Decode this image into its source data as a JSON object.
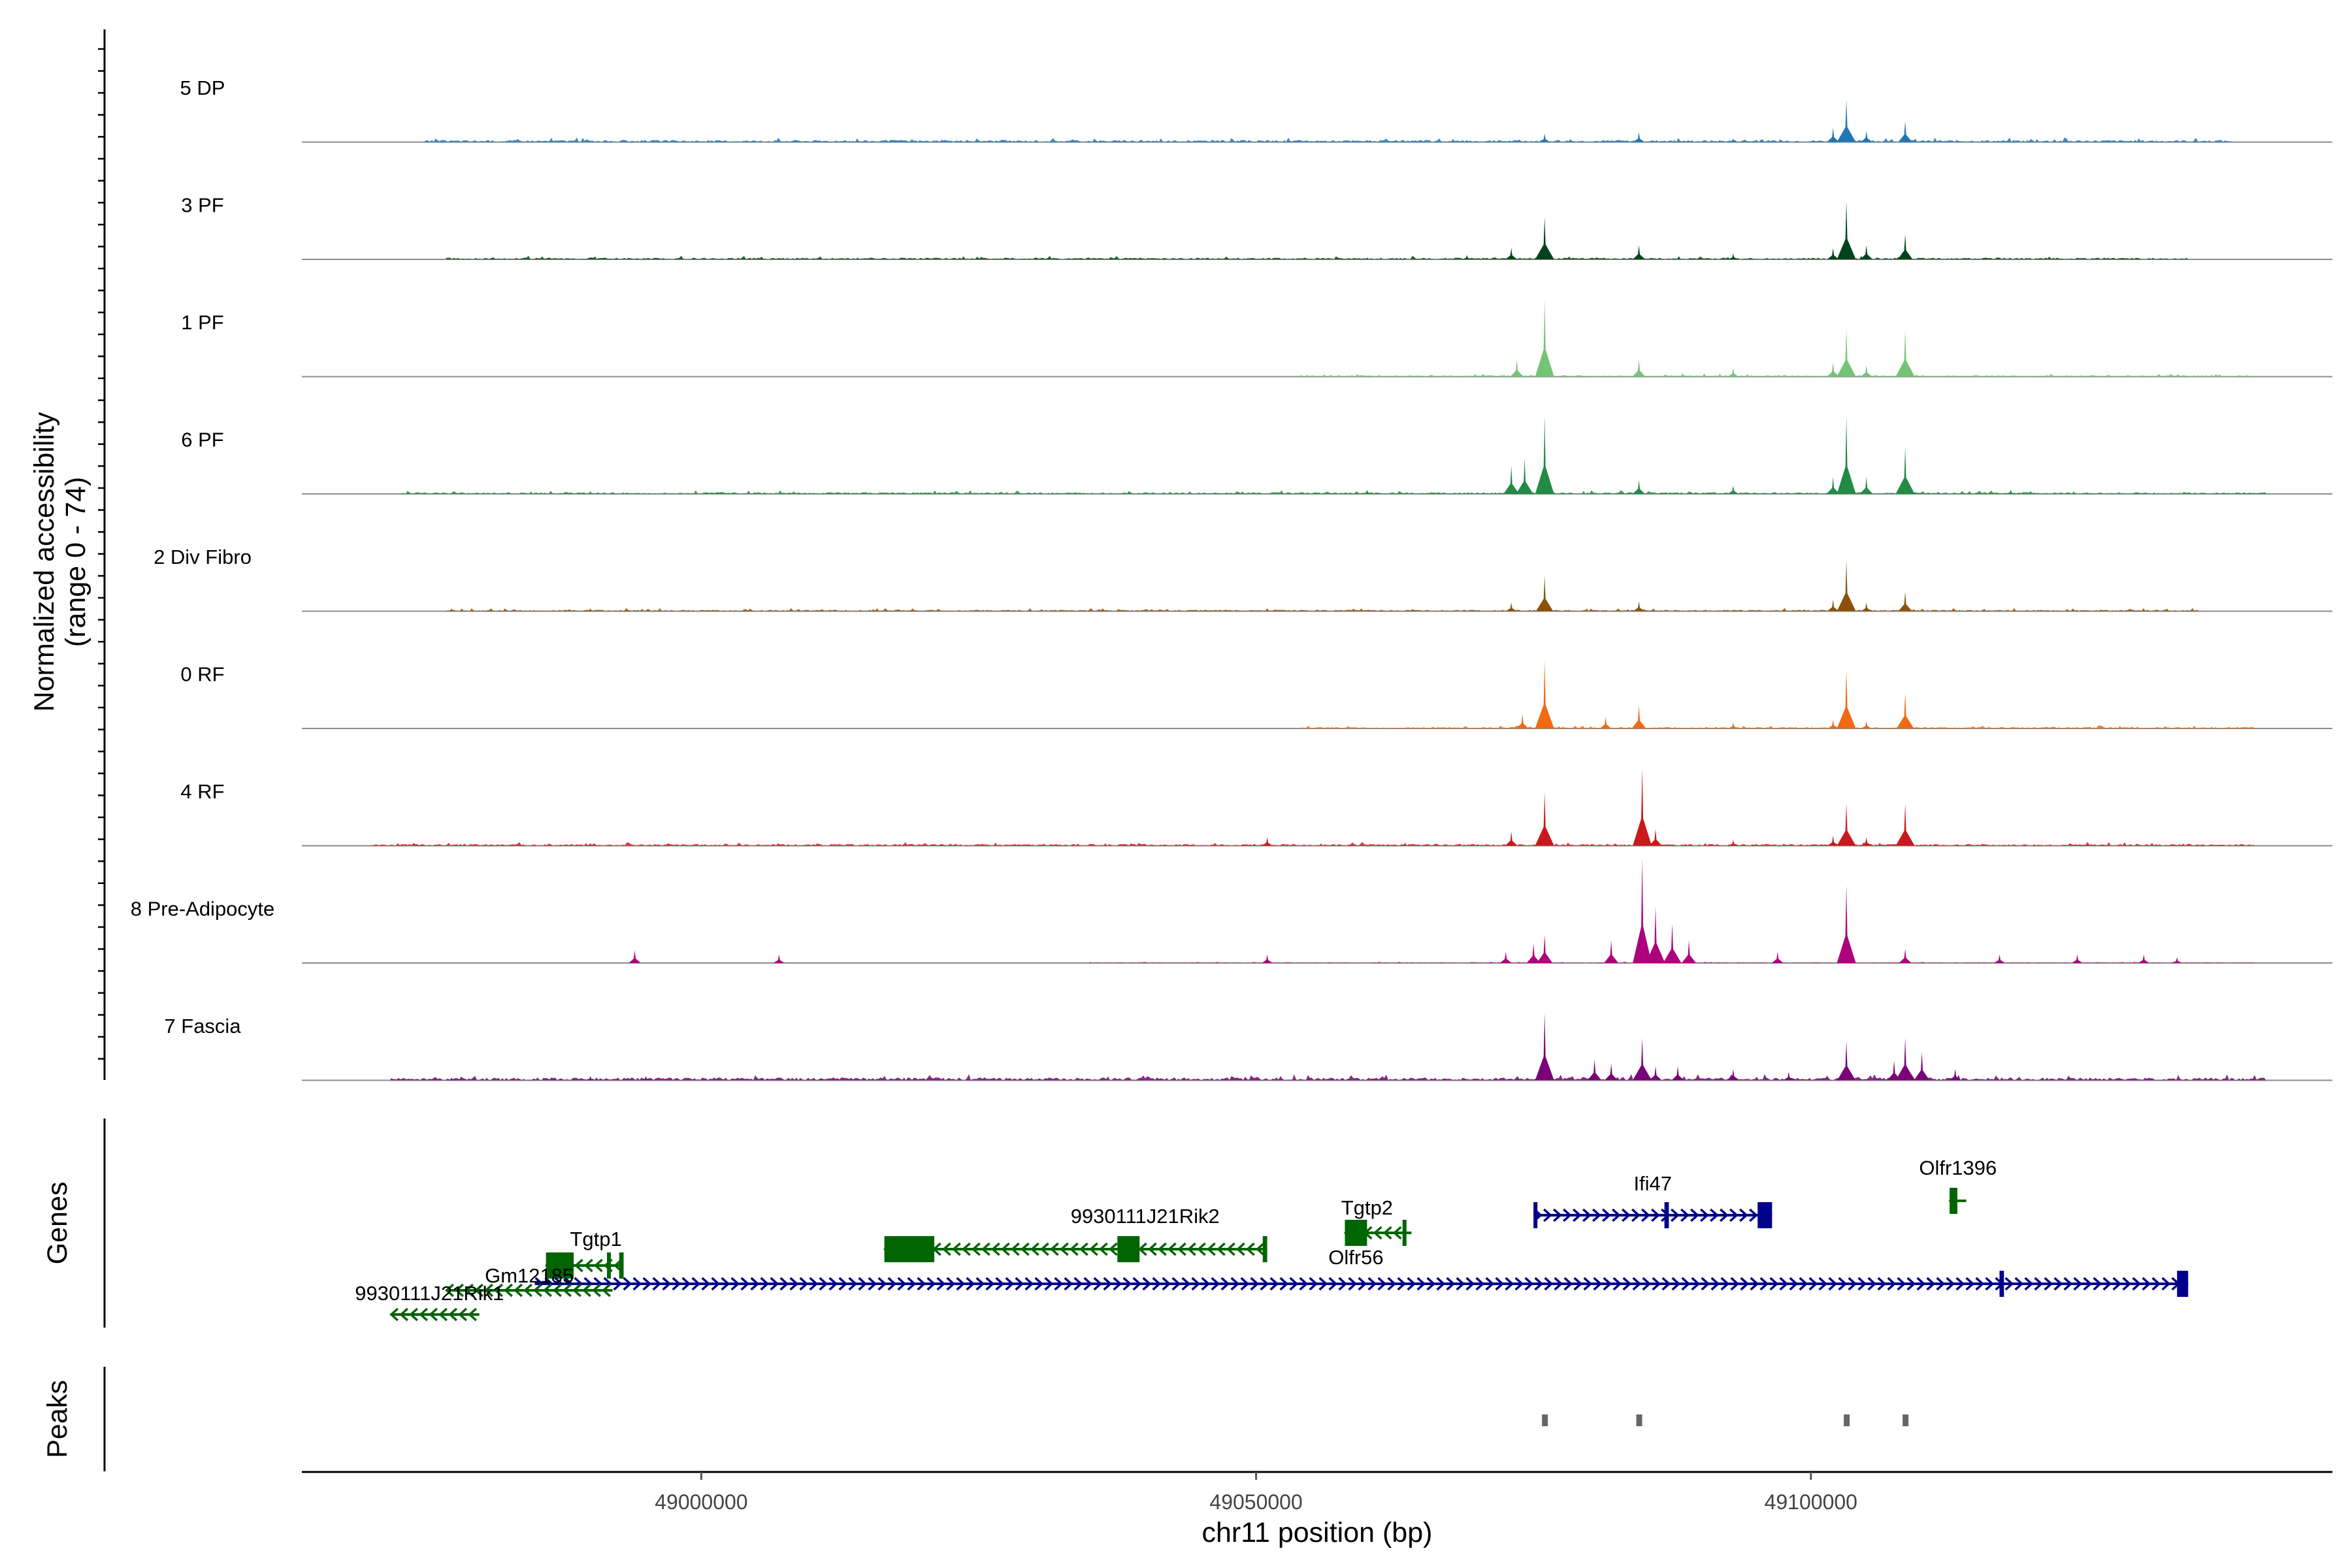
{
  "chart_data": {
    "type": "area",
    "title": "",
    "ylabel_line1": "Normalized accessibility",
    "ylabel_line2": "(range 0 - 74)",
    "ylim": [
      0,
      74
    ],
    "xlabel": "chr11 position (bp)",
    "xlim": [
      48964000,
      49147000
    ],
    "x_ticks": [
      49000000,
      49050000,
      49100000
    ],
    "x_tick_labels": [
      "49000000",
      "49050000",
      "49100000"
    ],
    "tracks": [
      {
        "name": "5 DP",
        "color": "#1f77b4",
        "region": [
          48975000,
          49138000
        ],
        "base": 1.5,
        "peaks": [
          [
            49076000,
            6
          ],
          [
            49084500,
            7
          ],
          [
            49093000,
            2.5
          ],
          [
            49102000,
            10
          ],
          [
            49103200,
            30
          ],
          [
            49105000,
            8
          ],
          [
            49108500,
            15
          ]
        ]
      },
      {
        "name": "3 PF",
        "color": "#00441b",
        "region": [
          48977000,
          49134000
        ],
        "base": 1.2,
        "peaks": [
          [
            49069000,
            3
          ],
          [
            49073000,
            8
          ],
          [
            49076000,
            30
          ],
          [
            49084500,
            10
          ],
          [
            49093000,
            4
          ],
          [
            49102000,
            8
          ],
          [
            49103200,
            41
          ],
          [
            49105000,
            10
          ],
          [
            49108500,
            18
          ]
        ]
      },
      {
        "name": "1 PF",
        "color": "#74c476",
        "region": [
          49054000,
          49140000
        ],
        "base": 1,
        "peaks": [
          [
            49073500,
            12
          ],
          [
            49076000,
            55
          ],
          [
            49084500,
            12
          ],
          [
            49093000,
            6
          ],
          [
            49102000,
            10
          ],
          [
            49103200,
            33
          ],
          [
            49105000,
            8
          ],
          [
            49108500,
            33
          ]
        ]
      },
      {
        "name": "6 PF",
        "color": "#238b45",
        "region": [
          48973000,
          49141000
        ],
        "base": 1.2,
        "peaks": [
          [
            48990000,
            2
          ],
          [
            49060000,
            3
          ],
          [
            49073000,
            20
          ],
          [
            49074200,
            25
          ],
          [
            49076000,
            55
          ],
          [
            49084500,
            10
          ],
          [
            49093000,
            6
          ],
          [
            49102000,
            12
          ],
          [
            49103200,
            55
          ],
          [
            49105000,
            12
          ],
          [
            49108500,
            33
          ],
          [
            49118000,
            3
          ]
        ]
      },
      {
        "name": "2 Div Fibro",
        "color": "#8c510a",
        "region": [
          48977000,
          49135000
        ],
        "base": 1,
        "peaks": [
          [
            48977500,
            2
          ],
          [
            48990000,
            2
          ],
          [
            49073000,
            6
          ],
          [
            49076000,
            25
          ],
          [
            49084500,
            7
          ],
          [
            49102000,
            8
          ],
          [
            49103200,
            36
          ],
          [
            49105000,
            6
          ],
          [
            49108500,
            14
          ]
        ]
      },
      {
        "name": "0 RF",
        "color": "#f16913",
        "region": [
          49054000,
          49140000
        ],
        "base": 1,
        "peaks": [
          [
            49074000,
            10
          ],
          [
            49076000,
            48
          ],
          [
            49081500,
            8
          ],
          [
            49084500,
            16
          ],
          [
            49093000,
            4
          ],
          [
            49102000,
            6
          ],
          [
            49103200,
            42
          ],
          [
            49105000,
            5
          ],
          [
            49108500,
            25
          ]
        ]
      },
      {
        "name": "4 RF",
        "color": "#cb181d",
        "region": [
          48970000,
          49140000
        ],
        "base": 1.2,
        "peaks": [
          [
            48990000,
            2
          ],
          [
            49051000,
            6
          ],
          [
            49073000,
            10
          ],
          [
            49076000,
            38
          ],
          [
            49084800,
            55
          ],
          [
            49086000,
            12
          ],
          [
            49093000,
            4
          ],
          [
            49102000,
            7
          ],
          [
            49103200,
            30
          ],
          [
            49105000,
            6
          ],
          [
            49108500,
            30
          ]
        ]
      },
      {
        "name": "8 Pre-Adipocyte",
        "color": "#ae017e",
        "region": [
          49035000,
          49140000
        ],
        "base": 0.4,
        "peaks": [
          [
            48994000,
            9
          ],
          [
            49007000,
            6
          ],
          [
            49051000,
            6
          ],
          [
            49072500,
            8
          ],
          [
            49075000,
            14
          ],
          [
            49076000,
            20
          ],
          [
            49082000,
            16
          ],
          [
            49084800,
            74
          ],
          [
            49086000,
            40
          ],
          [
            49087500,
            28
          ],
          [
            49089000,
            16
          ],
          [
            49097000,
            8
          ],
          [
            49103200,
            55
          ],
          [
            49108500,
            10
          ],
          [
            49117000,
            6
          ],
          [
            49124000,
            6
          ],
          [
            49130000,
            6
          ],
          [
            49133000,
            4
          ]
        ]
      },
      {
        "name": "7 Fascia",
        "color": "#7a0177",
        "region": [
          48972000,
          49141000
        ],
        "base": 2,
        "peaks": [
          [
            48977500,
            2
          ],
          [
            48990000,
            3
          ],
          [
            48995000,
            3
          ],
          [
            49076000,
            48
          ],
          [
            49080500,
            15
          ],
          [
            49082000,
            12
          ],
          [
            49084800,
            30
          ],
          [
            49086000,
            10
          ],
          [
            49088000,
            10
          ],
          [
            49093000,
            8
          ],
          [
            49098000,
            6
          ],
          [
            49103200,
            28
          ],
          [
            49107500,
            14
          ],
          [
            49108500,
            30
          ],
          [
            49110000,
            20
          ],
          [
            49113000,
            8
          ]
        ]
      }
    ],
    "genes_title": "Genes",
    "genes": [
      {
        "name": "Olfr1396",
        "label": "Olfr1396",
        "strand": "-",
        "start": 49112500,
        "end": 49114000,
        "row": 0,
        "color": "#006400",
        "exons": [
          [
            49112500,
            49113200
          ]
        ]
      },
      {
        "name": "Ifi47",
        "label": "Ifi47",
        "strand": "+",
        "start": 49075000,
        "end": 49096500,
        "row": 1,
        "color": "#00008b",
        "exons": [
          [
            49075000,
            49075300
          ],
          [
            49086800,
            49087200
          ],
          [
            49095200,
            49096500
          ]
        ]
      },
      {
        "name": "Tgtp2",
        "label": "Tgtp2",
        "strand": "-",
        "start": 49058000,
        "end": 49064000,
        "row": 2,
        "color": "#006400",
        "exons": [
          [
            49058000,
            49060000
          ],
          [
            49063200,
            49063500
          ]
        ]
      },
      {
        "name": "9930111J21Rik2",
        "label": "9930111J21Rik2",
        "strand": "-",
        "start": 49016500,
        "end": 49051000,
        "row": 3,
        "color": "#006400",
        "exons": [
          [
            49016500,
            49021000
          ],
          [
            49037500,
            49039500
          ],
          [
            49050600,
            49051000
          ]
        ]
      },
      {
        "name": "Tgtp1",
        "label": "Tgtp1",
        "strand": "-",
        "start": 48986000,
        "end": 48993000,
        "row": 4,
        "color": "#006400",
        "exons": [
          [
            48986000,
            48988500
          ],
          [
            48991500,
            48991800
          ],
          [
            48992600,
            48993000
          ]
        ]
      },
      {
        "name": "Olfr56",
        "label": "Olfr56",
        "strand": "+",
        "start": 48985000,
        "end": 49134000,
        "row": 5,
        "color": "#00008b",
        "exons": [
          [
            49117000,
            49117400
          ],
          [
            49133000,
            49134000
          ]
        ]
      },
      {
        "name": "Gm12185",
        "label": "Gm12185",
        "strand": "-",
        "start": 48977000,
        "end": 48992000,
        "row": 6,
        "color": "#006400",
        "exons": []
      },
      {
        "name": "9930111J21Rik1",
        "label": "9930111J21Rik1",
        "strand": "-",
        "start": 48972000,
        "end": 48980000,
        "row": 7,
        "color": "#006400",
        "exons": []
      }
    ],
    "peaks_title": "Peaks",
    "peak_regions": [
      49076000,
      49084500,
      49103200,
      49108500
    ]
  }
}
